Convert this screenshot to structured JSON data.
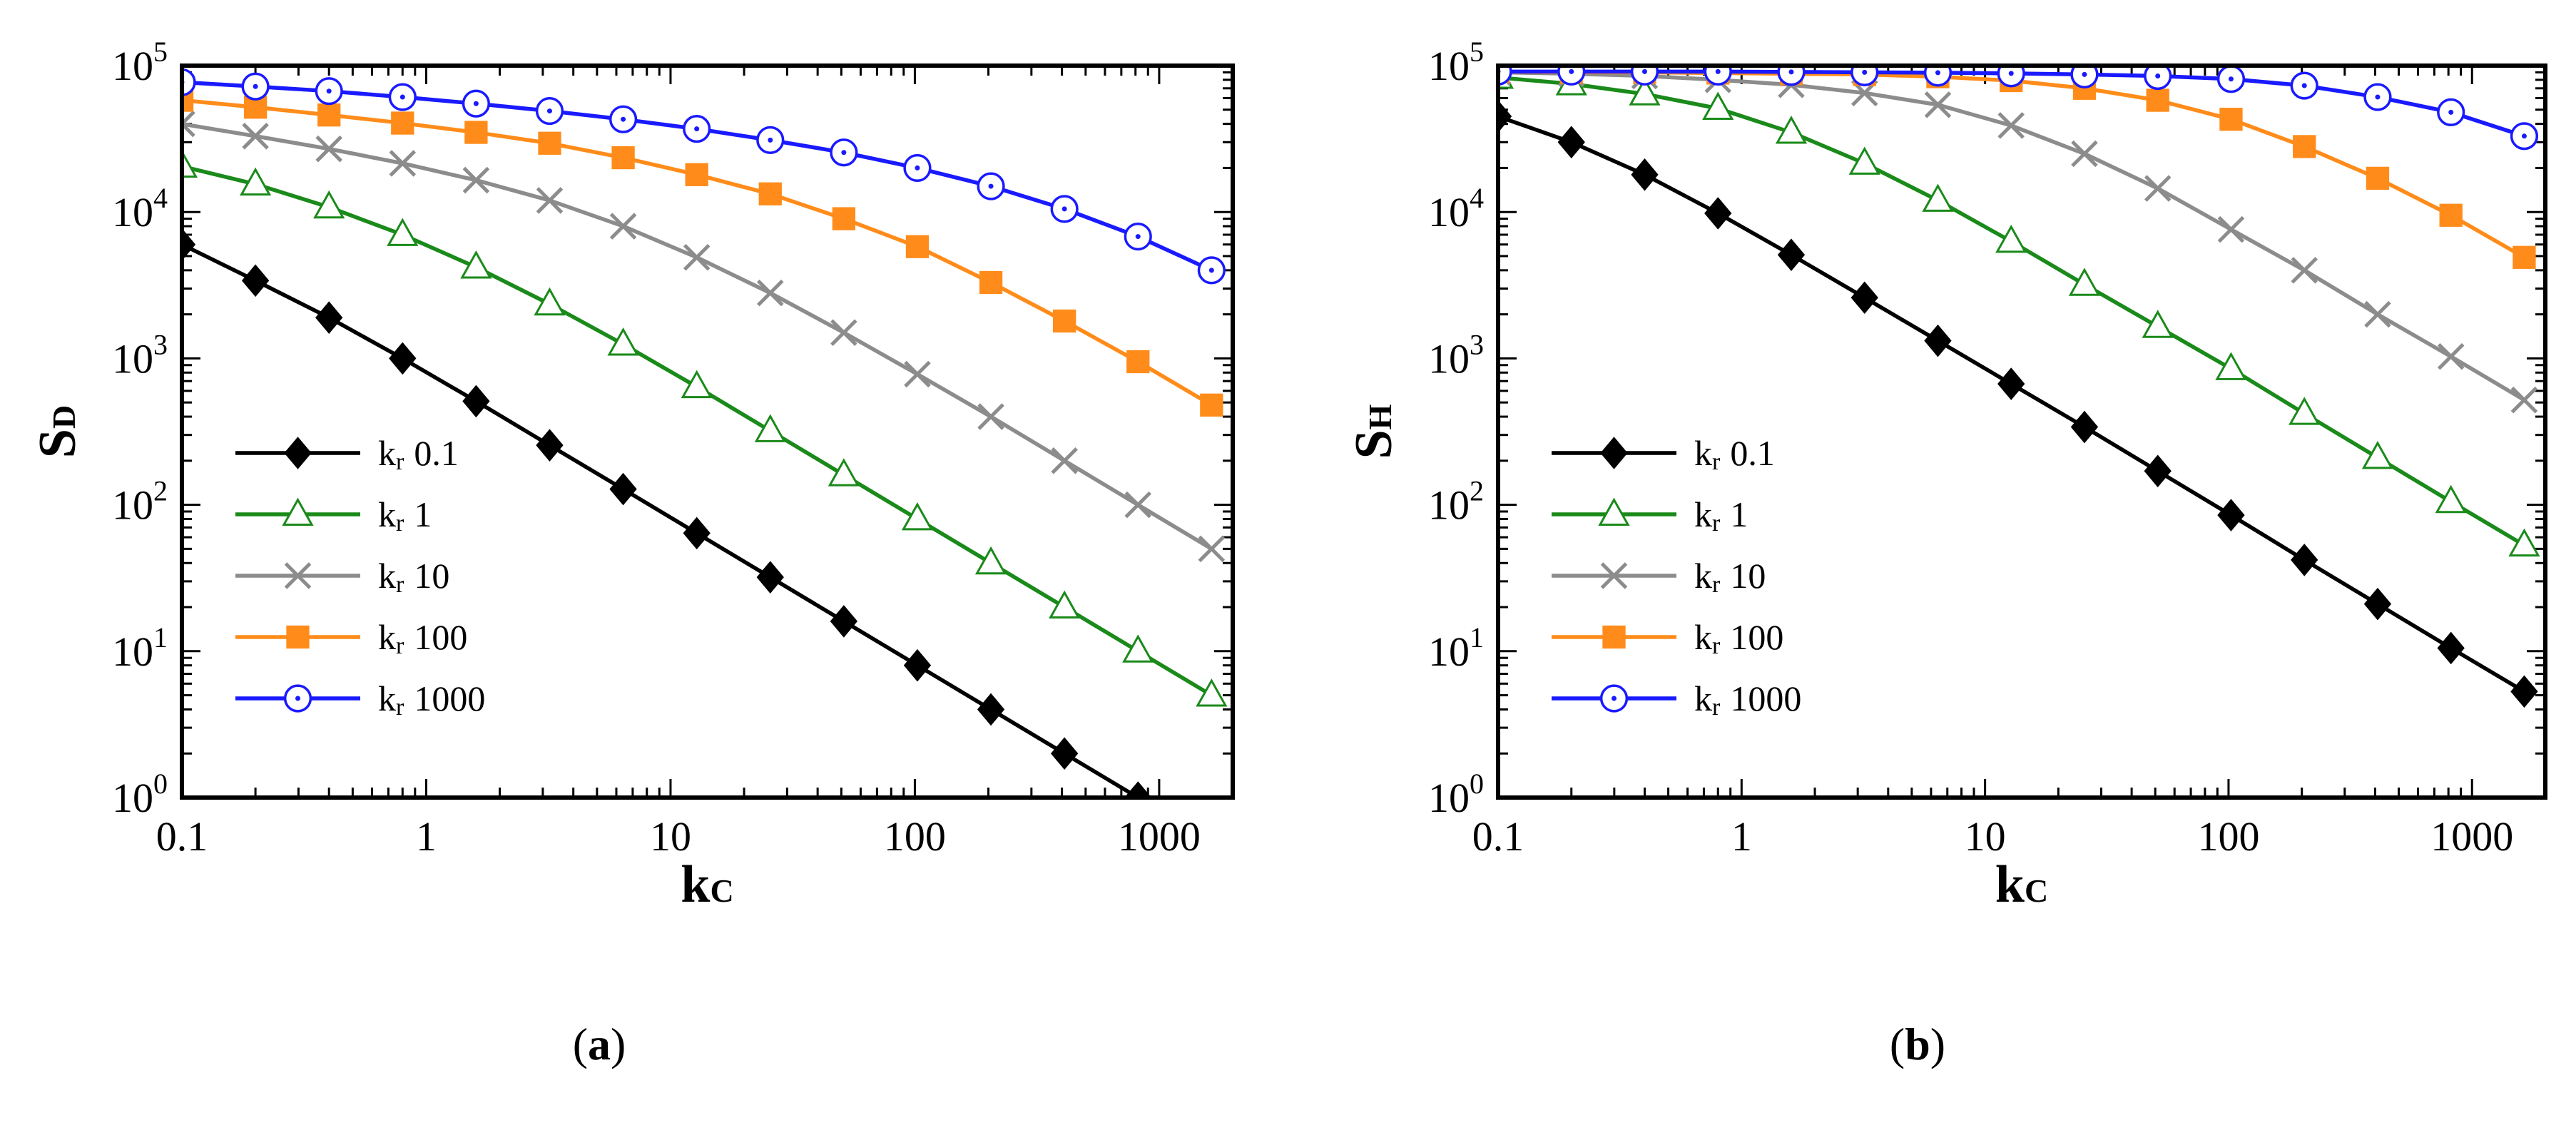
{
  "figure": {
    "captions": [
      {
        "open": "(",
        "letter": "a",
        "close": ")"
      },
      {
        "open": "(",
        "letter": "b",
        "close": ")"
      }
    ]
  },
  "chart_data": [
    {
      "type": "line",
      "panel": "a",
      "title": "",
      "xlabel": {
        "main": "k",
        "sub": "C"
      },
      "ylabel": {
        "main": "S",
        "sub": "D"
      },
      "xscale": "log",
      "yscale": "log",
      "xlim": [
        0.1,
        2000
      ],
      "ylim": [
        1,
        100000
      ],
      "xticks": [
        {
          "value": 0.1,
          "label": "0.1"
        },
        {
          "value": 1,
          "label": "1"
        },
        {
          "value": 10,
          "label": "10"
        },
        {
          "value": 100,
          "label": "100"
        },
        {
          "value": 1000,
          "label": "1000"
        }
      ],
      "yticks": [
        {
          "value": 1,
          "base": "10",
          "exp": "0"
        },
        {
          "value": 10,
          "base": "10",
          "exp": "1"
        },
        {
          "value": 100,
          "base": "10",
          "exp": "2"
        },
        {
          "value": 1000,
          "base": "10",
          "exp": "3"
        },
        {
          "value": 10000,
          "base": "10",
          "exp": "4"
        },
        {
          "value": 100000,
          "base": "10",
          "exp": "5"
        }
      ],
      "legend_position": "center-left",
      "x": [
        0.1,
        0.2,
        0.4,
        0.8,
        1.6,
        3.2,
        6.4,
        12.8,
        25.6,
        51.2,
        102.4,
        204.8,
        409.6,
        819.2,
        1638.4
      ],
      "series": [
        {
          "name_main": "k",
          "name_sub": "r",
          "name_value": "0.1",
          "color": "#000000",
          "marker": "diamond",
          "values": [
            6000,
            3400,
            1900,
            1000,
            510,
            255,
            128,
            64,
            32,
            16,
            8,
            4,
            2,
            1,
            null
          ]
        },
        {
          "name_main": "k",
          "name_sub": "r",
          "name_value": "1",
          "color": "#1a8a1a",
          "marker": "triangle",
          "values": [
            20500,
            15500,
            10800,
            7000,
            4200,
            2350,
            1250,
            640,
            320,
            160,
            80,
            40,
            20,
            10,
            5
          ]
        },
        {
          "name_main": "k",
          "name_sub": "r",
          "name_value": "10",
          "color": "#8c8c8c",
          "marker": "x",
          "values": [
            40000,
            33000,
            27000,
            21500,
            16500,
            12000,
            8000,
            4900,
            2800,
            1500,
            780,
            400,
            200,
            100,
            50
          ]
        },
        {
          "name_main": "k",
          "name_sub": "r",
          "name_value": "100",
          "color": "#ff8c1a",
          "marker": "square",
          "values": [
            58000,
            52000,
            46000,
            40500,
            35000,
            29500,
            23500,
            18000,
            13300,
            9000,
            5800,
            3300,
            1800,
            950,
            480
          ]
        },
        {
          "name_main": "k",
          "name_sub": "r",
          "name_value": "1000",
          "color": "#1a1aff",
          "marker": "circle-dot",
          "values": [
            77000,
            72000,
            67000,
            61000,
            55000,
            49000,
            43000,
            37000,
            31000,
            25500,
            20000,
            15000,
            10500,
            6800,
            4000
          ]
        }
      ]
    },
    {
      "type": "line",
      "panel": "b",
      "title": "",
      "xlabel": {
        "main": "k",
        "sub": "C"
      },
      "ylabel": {
        "main": "S",
        "sub": "H"
      },
      "xscale": "log",
      "yscale": "log",
      "xlim": [
        0.1,
        2000
      ],
      "ylim": [
        1,
        100000
      ],
      "xticks": [
        {
          "value": 0.1,
          "label": "0.1"
        },
        {
          "value": 1,
          "label": "1"
        },
        {
          "value": 10,
          "label": "10"
        },
        {
          "value": 100,
          "label": "100"
        },
        {
          "value": 1000,
          "label": "1000"
        }
      ],
      "yticks": [
        {
          "value": 1,
          "base": "10",
          "exp": "0"
        },
        {
          "value": 10,
          "base": "10",
          "exp": "1"
        },
        {
          "value": 100,
          "base": "10",
          "exp": "2"
        },
        {
          "value": 1000,
          "base": "10",
          "exp": "3"
        },
        {
          "value": 10000,
          "base": "10",
          "exp": "4"
        },
        {
          "value": 100000,
          "base": "10",
          "exp": "5"
        }
      ],
      "legend_position": "center-left",
      "x": [
        0.1,
        0.2,
        0.4,
        0.8,
        1.6,
        3.2,
        6.4,
        12.8,
        25.6,
        51.2,
        102.4,
        204.8,
        409.6,
        819.2,
        1638.4
      ],
      "series": [
        {
          "name_main": "k",
          "name_sub": "r",
          "name_value": "0.1",
          "color": "#000000",
          "marker": "diamond",
          "values": [
            45000,
            30000,
            18000,
            9800,
            5100,
            2600,
            1320,
            670,
            340,
            170,
            85,
            42,
            21,
            10.5,
            5.3
          ]
        },
        {
          "name_main": "k",
          "name_sub": "r",
          "name_value": "1",
          "color": "#1a8a1a",
          "marker": "triangle",
          "values": [
            83000,
            75000,
            64000,
            51000,
            35000,
            21500,
            12000,
            6300,
            3200,
            1650,
            850,
            420,
            210,
            105,
            53
          ]
        },
        {
          "name_main": "k",
          "name_sub": "r",
          "name_value": "10",
          "color": "#8c8c8c",
          "marker": "x",
          "values": [
            90000,
            88000,
            85000,
            80000,
            74000,
            65000,
            54000,
            39000,
            25000,
            14500,
            7600,
            4000,
            2000,
            1030,
            520
          ]
        },
        {
          "name_main": "k",
          "name_sub": "r",
          "name_value": "100",
          "color": "#ff8c1a",
          "marker": "square",
          "values": [
            91000,
            90000,
            90000,
            89000,
            88000,
            87000,
            84000,
            79000,
            70000,
            58000,
            43000,
            28000,
            17000,
            9500,
            4900
          ]
        },
        {
          "name_main": "k",
          "name_sub": "r",
          "name_value": "1000",
          "color": "#1a1aff",
          "marker": "circle-dot",
          "values": [
            91000,
            91000,
            91000,
            91000,
            90500,
            90000,
            89500,
            88500,
            87000,
            85000,
            81000,
            73000,
            61000,
            48000,
            33000
          ]
        }
      ]
    }
  ]
}
